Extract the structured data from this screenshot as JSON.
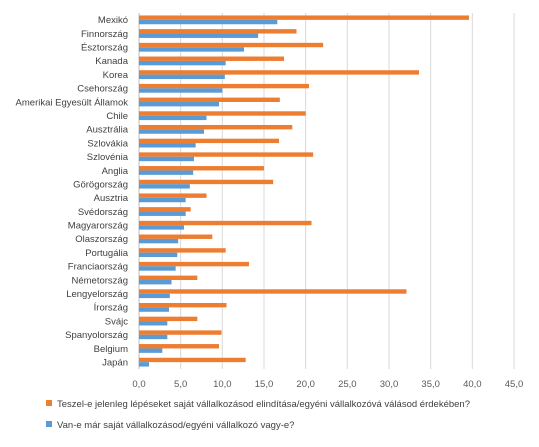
{
  "chart_data": {
    "type": "bar",
    "orientation": "horizontal",
    "title": "",
    "xlabel": "",
    "ylabel": "",
    "xlim": [
      0,
      45
    ],
    "x_ticks": [
      "0,0",
      "5,0",
      "10,0",
      "15,0",
      "20,0",
      "25,0",
      "30,0",
      "35,0",
      "40,0",
      "45,0"
    ],
    "grid": "vertical",
    "legend_position": "bottom",
    "categories": [
      "Mexikó",
      "Finnország",
      "Észtország",
      "Kanada",
      "Korea",
      "Csehország",
      "Amerikai Egyesült Államok",
      "Chile",
      "Ausztrália",
      "Szlovákia",
      "Szlovénia",
      "Anglia",
      "Görögország",
      "Ausztria",
      "Svédország",
      "Magyarország",
      "Olaszország",
      "Portugália",
      "Franciaország",
      "Németország",
      "Lengyelország",
      "Írország",
      "Svájc",
      "Spanyolország",
      "Belgium",
      "Japán"
    ],
    "series": [
      {
        "name": "Teszel-e jelenleg lépéseket saját vállalkozásod elindítása/egyéni vállalkozóvá válásod érdekében?",
        "color": "#ED7D31",
        "values": [
          39.6,
          18.9,
          22.1,
          17.4,
          33.6,
          20.4,
          16.9,
          20.0,
          18.4,
          16.8,
          20.9,
          15.0,
          16.1,
          8.1,
          6.2,
          20.7,
          8.8,
          10.4,
          13.2,
          7.0,
          32.1,
          10.5,
          7.0,
          9.9,
          9.6,
          12.8
        ]
      },
      {
        "name": "Van-e már saját vállalkozásod/egyéni vállalkozó vagy-e?",
        "color": "#5B9BD5",
        "values": [
          16.6,
          14.3,
          12.6,
          10.4,
          10.3,
          10.0,
          9.6,
          8.1,
          7.8,
          6.8,
          6.6,
          6.5,
          6.1,
          5.6,
          5.6,
          5.4,
          4.7,
          4.6,
          4.4,
          3.9,
          3.7,
          3.6,
          3.4,
          3.4,
          2.8,
          1.2
        ]
      }
    ]
  }
}
